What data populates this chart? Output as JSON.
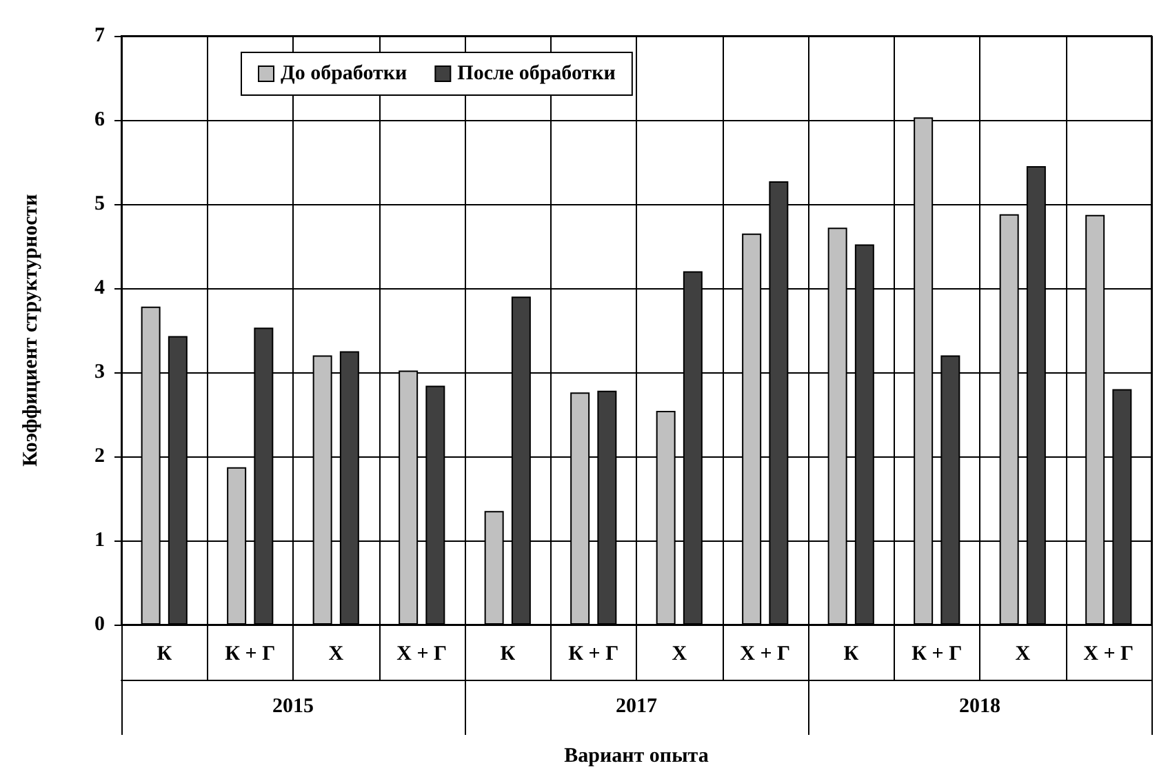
{
  "chart_data": {
    "type": "bar",
    "xlabel": "Вариант опыта",
    "ylabel": "Коэффициент структурности",
    "categories": [
      "К",
      "К + Г",
      "Х",
      "Х + Г",
      "К",
      "К + Г",
      "Х",
      "Х + Г",
      "К",
      "К + Г",
      "Х",
      "Х + Г"
    ],
    "series": [
      {
        "name": "До обработки",
        "color": "#c0c0c0",
        "values": [
          3.78,
          1.87,
          3.2,
          3.02,
          1.35,
          2.76,
          2.54,
          4.65,
          4.72,
          6.03,
          4.88,
          4.87
        ]
      },
      {
        "name": "После обработки",
        "color": "#404040",
        "values": [
          3.43,
          3.53,
          3.25,
          2.84,
          3.9,
          2.78,
          4.2,
          5.27,
          4.52,
          3.2,
          5.45,
          2.8
        ]
      }
    ],
    "annotations": [
      "2015",
      "2017",
      "2018"
    ],
    "ylim": [
      0,
      7
    ],
    "yticks": [
      0,
      1,
      2,
      3,
      4,
      5,
      6,
      7
    ],
    "grid": true,
    "legend": "top"
  }
}
